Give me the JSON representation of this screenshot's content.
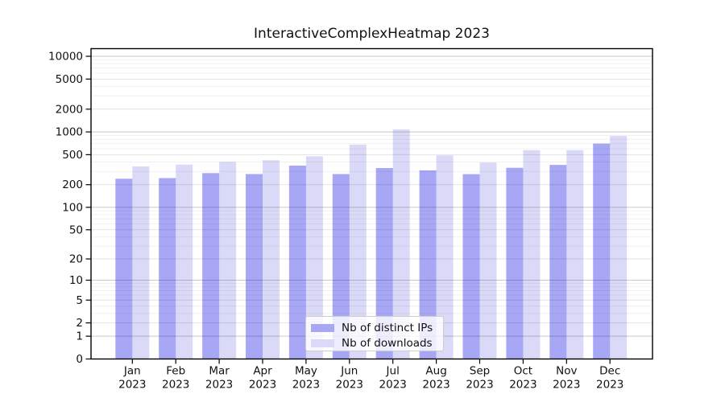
{
  "title": "InteractiveComplexHeatmap 2023",
  "colors": {
    "bar_distinct_ips": "#a7a7f6",
    "bar_downloads": "#dadaf8",
    "grid_power10": "#c9c9c9",
    "grid_major": "#e2e2e2",
    "grid_minor": "#f0f0f0",
    "axis": "#000000",
    "background": "#ffffff"
  },
  "legend": {
    "items": [
      {
        "label": "Nb of distinct IPs",
        "color": "#a7a7f6"
      },
      {
        "label": "Nb of downloads",
        "color": "#dadaf8"
      }
    ]
  },
  "chart_data": {
    "type": "bar",
    "title": "InteractiveComplexHeatmap 2023",
    "scale": "log1p",
    "grid": true,
    "legend_position": "lower center",
    "categories": [
      "Jan",
      "Feb",
      "Mar",
      "Apr",
      "May",
      "Jun",
      "Jul",
      "Aug",
      "Sep",
      "Oct",
      "Nov",
      "Dec"
    ],
    "year": "2023",
    "series": [
      {
        "name": "Nb of distinct IPs",
        "values": [
          240,
          245,
          285,
          277,
          358,
          277,
          333,
          310,
          276,
          335,
          366,
          700
        ]
      },
      {
        "name": "Nb of downloads",
        "values": [
          350,
          370,
          402,
          422,
          476,
          680,
          1080,
          490,
          393,
          575,
          575,
          885
        ]
      }
    ],
    "y_ticks": [
      0,
      1,
      2,
      5,
      10,
      20,
      50,
      100,
      200,
      500,
      1000,
      2000,
      5000,
      10000
    ],
    "ylim": [
      0,
      10000
    ],
    "xlabel": "",
    "ylabel": ""
  }
}
